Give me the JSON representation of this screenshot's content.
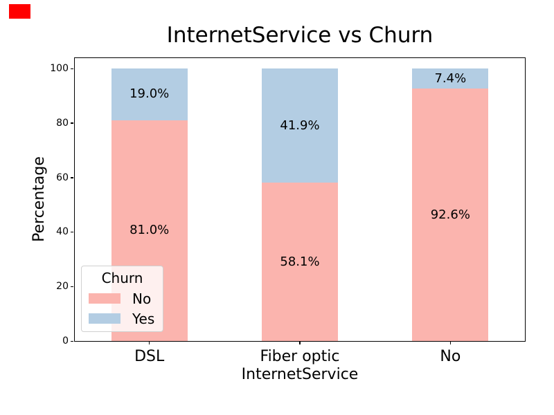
{
  "marker": {
    "color": "#ff0000"
  },
  "chart_data": {
    "type": "bar",
    "stacked": true,
    "title": "InternetService vs Churn",
    "xlabel": "InternetService",
    "ylabel": "Percentage",
    "categories": [
      "DSL",
      "Fiber optic",
      "No"
    ],
    "series": [
      {
        "name": "No",
        "color": "#fbb4ae",
        "values": [
          81.0,
          58.1,
          92.6
        ],
        "labels": [
          "81.0%",
          "58.1%",
          "92.6%"
        ]
      },
      {
        "name": "Yes",
        "color": "#b3cde3",
        "values": [
          19.0,
          41.9,
          7.4
        ],
        "labels": [
          "19.0%",
          "41.9%",
          "7.4%"
        ]
      }
    ],
    "ylim": [
      0,
      104
    ],
    "yticks": [
      0,
      20,
      40,
      60,
      80,
      100
    ],
    "grid": false,
    "bar_width_fraction": 0.5,
    "legend": {
      "title": "Churn",
      "position": "lower left",
      "entries": [
        {
          "label": "No",
          "color": "#fbb4ae"
        },
        {
          "label": "Yes",
          "color": "#b3cde3"
        }
      ]
    }
  }
}
